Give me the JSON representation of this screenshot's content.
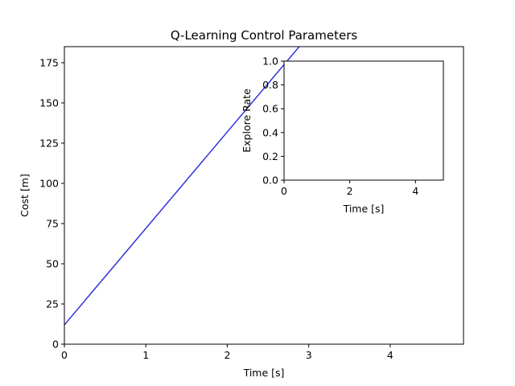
{
  "chart_data": [
    {
      "type": "line",
      "title": "Q-Learning Control Parameters",
      "xlabel": "Time [s]",
      "ylabel": "Cost [m]",
      "xlim": [
        0,
        4.9
      ],
      "ylim": [
        0,
        185
      ],
      "xticks": [
        0,
        1,
        2,
        3,
        4
      ],
      "yticks": [
        0,
        25,
        50,
        75,
        100,
        125,
        150,
        175
      ],
      "grid": false,
      "series": [
        {
          "x": [
            0,
            2.9
          ],
          "y": [
            12,
            186
          ],
          "color": "#3333dd"
        }
      ]
    },
    {
      "type": "line",
      "title": "",
      "xlabel": "Time [s]",
      "ylabel": "Explore Rate",
      "xlim": [
        0,
        4.85
      ],
      "ylim": [
        0,
        1.0
      ],
      "xticks": [
        0,
        2,
        4
      ],
      "yticks": [
        0.0,
        0.2,
        0.4,
        0.6,
        0.8,
        1.0
      ],
      "ytick_labels": [
        "0.0",
        "0.2",
        "0.4",
        "0.6",
        "0.8",
        "1.0"
      ],
      "grid": false,
      "series": []
    }
  ]
}
